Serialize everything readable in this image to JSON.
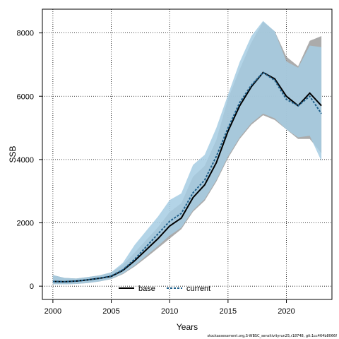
{
  "chart_data": {
    "type": "line",
    "xlabel": "Years",
    "ylabel": "SSB",
    "xlim": [
      1999.1,
      2023.9
    ],
    "ylim": [
      -420,
      8750
    ],
    "x_ticks": [
      2000,
      2005,
      2010,
      2015,
      2020
    ],
    "y_ticks": [
      0,
      2000,
      4000,
      6000,
      8000
    ],
    "grid": "dotted",
    "legend_position": "bottom",
    "footnote": "stockassessment.org,S-WBSC_sensitivityrun25,r18748, git:1cc464b8066f",
    "colors": {
      "base": "#000000",
      "current": "#1f5f8a",
      "base_band": "#9c9c9c",
      "current_band": "#a6cde3"
    },
    "series": [
      {
        "name": "base",
        "style": "solid",
        "x": [
          2000,
          2001,
          2002,
          2003,
          2004,
          2005,
          2006,
          2007,
          2008,
          2009,
          2010,
          2011,
          2012,
          2013,
          2014,
          2015,
          2016,
          2017,
          2018,
          2019,
          2020,
          2021,
          2022,
          2023
        ],
        "values": [
          150,
          140,
          160,
          200,
          250,
          310,
          500,
          800,
          1150,
          1500,
          1900,
          2150,
          2800,
          3200,
          3900,
          4900,
          5700,
          6300,
          6750,
          6550,
          6000,
          5700,
          6100,
          5700
        ],
        "lower": [
          60,
          60,
          70,
          100,
          150,
          220,
          380,
          620,
          900,
          1200,
          1500,
          1800,
          2350,
          2700,
          3300,
          4050,
          4650,
          5100,
          5400,
          5250,
          4950,
          4650,
          4650,
          4200
        ],
        "upper": [
          350,
          260,
          240,
          290,
          340,
          430,
          680,
          1060,
          1460,
          1860,
          2340,
          2620,
          3460,
          3800,
          4620,
          5920,
          6850,
          7700,
          8350,
          8050,
          7250,
          6950,
          7750,
          7900
        ]
      },
      {
        "name": "current",
        "style": "dashed",
        "x": [
          2000,
          2001,
          2002,
          2003,
          2004,
          2005,
          2006,
          2007,
          2008,
          2009,
          2010,
          2011,
          2012,
          2013,
          2014,
          2015,
          2016,
          2017,
          2018,
          2019,
          2020,
          2021,
          2022,
          2023
        ],
        "values": [
          150,
          140,
          160,
          200,
          250,
          320,
          520,
          850,
          1250,
          1650,
          2050,
          2300,
          2950,
          3350,
          4100,
          5000,
          5800,
          6350,
          6750,
          6500,
          5900,
          5700,
          6000,
          5450
        ],
        "lower": [
          60,
          60,
          70,
          100,
          150,
          230,
          400,
          650,
          960,
          1270,
          1600,
          1850,
          2400,
          2750,
          3350,
          4100,
          4700,
          5150,
          5450,
          5300,
          4950,
          4700,
          4750,
          3950
        ],
        "upper": [
          350,
          260,
          240,
          290,
          340,
          440,
          740,
          1300,
          1750,
          2200,
          2720,
          2930,
          3830,
          4150,
          5000,
          6050,
          7080,
          7900,
          8380,
          8050,
          7100,
          6900,
          7600,
          7550
        ]
      }
    ]
  }
}
